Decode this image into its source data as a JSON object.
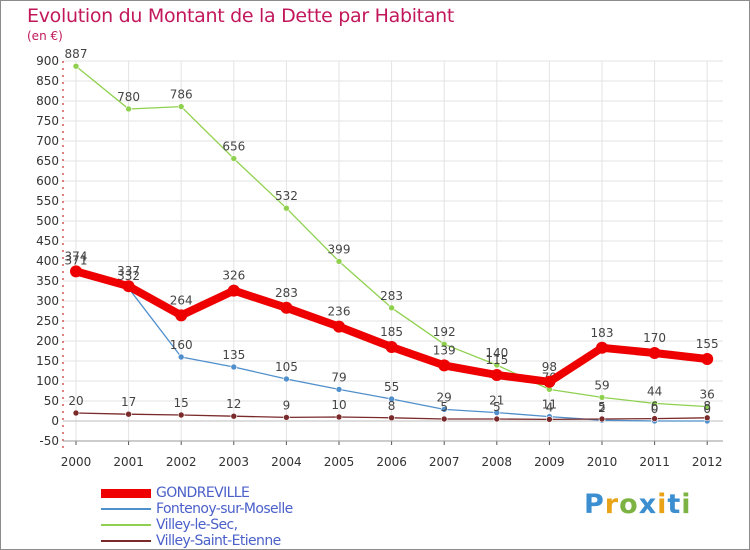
{
  "header": {
    "title": "Evolution du Montant de la Dette par Habitant",
    "unit": "(en €)"
  },
  "logo": {
    "text": "Proxiti",
    "letters": [
      {
        "ch": "P",
        "color": "#3b8fd0"
      },
      {
        "ch": "r",
        "color": "#e8a317"
      },
      {
        "ch": "o",
        "color": "#7cb342"
      },
      {
        "ch": "x",
        "color": "#3b8fd0"
      },
      {
        "ch": "i",
        "color": "#e8a317"
      },
      {
        "ch": "t",
        "color": "#3b8fd0"
      },
      {
        "ch": "i",
        "color": "#7cb342"
      }
    ]
  },
  "chart_data": {
    "type": "line",
    "title": "Evolution du Montant de la Dette par Habitant",
    "ylabel": "(en €)",
    "xlabel": "",
    "categories": [
      "2000",
      "2001",
      "2002",
      "2003",
      "2004",
      "2005",
      "2006",
      "2007",
      "2008",
      "2009",
      "2010",
      "2011",
      "2012"
    ],
    "ylim": [
      -50,
      900
    ],
    "yticks": [
      -50,
      0,
      50,
      100,
      150,
      200,
      250,
      300,
      350,
      400,
      450,
      500,
      550,
      600,
      650,
      700,
      750,
      800,
      850,
      900
    ],
    "legend_position": "bottom-left",
    "series": [
      {
        "name": "Villey-le-Sec",
        "legend": "Villey-le-Sec,",
        "color": "#8fd14f",
        "width": 1.3,
        "marker": 3,
        "values": [
          887,
          780,
          786,
          656,
          532,
          399,
          283,
          192,
          140,
          79,
          59,
          44,
          36
        ],
        "labels": [
          "887",
          "780",
          "786",
          "656",
          "532",
          "399",
          "283",
          "192",
          "140",
          "79",
          "59",
          "44",
          "36"
        ]
      },
      {
        "name": "Fontenoy-sur-Moselle",
        "legend": "Fontenoy-sur-Moselle",
        "color": "#4f8fcb",
        "width": 1.3,
        "marker": 3,
        "values": [
          371,
          332,
          160,
          135,
          105,
          79,
          55,
          29,
          21,
          11,
          2,
          0,
          0
        ],
        "labels": [
          "371",
          "332",
          "160",
          "135",
          "105",
          "79",
          "55",
          "29",
          "21",
          "11",
          "2",
          "0",
          "0"
        ]
      },
      {
        "name": "Villey-Saint-Etienne",
        "legend": "Villey-Saint-Etienne",
        "color": "#7a2a2a",
        "width": 1.3,
        "marker": 3,
        "values": [
          20,
          17,
          15,
          12,
          9,
          10,
          8,
          5,
          5,
          4,
          5,
          6,
          8
        ],
        "labels": [
          "20",
          "17",
          "15",
          "12",
          "9",
          "10",
          "8",
          "5",
          "5",
          "4",
          "5",
          "6",
          "8"
        ]
      },
      {
        "name": "GONDREVILLE",
        "legend": "GONDREVILLE",
        "color": "#ee0000",
        "width": 8,
        "marker": 6,
        "values": [
          374,
          337,
          264,
          326,
          283,
          236,
          185,
          139,
          115,
          98,
          183,
          170,
          155
        ],
        "labels": [
          "374",
          "337",
          "264",
          "326",
          "283",
          "236",
          "185",
          "139",
          "115",
          "98",
          "183",
          "170",
          "155"
        ]
      }
    ],
    "legend_order": [
      "GONDREVILLE",
      "Fontenoy-sur-Moselle",
      "Villey-le-Sec",
      "Villey-Saint-Etienne"
    ]
  }
}
